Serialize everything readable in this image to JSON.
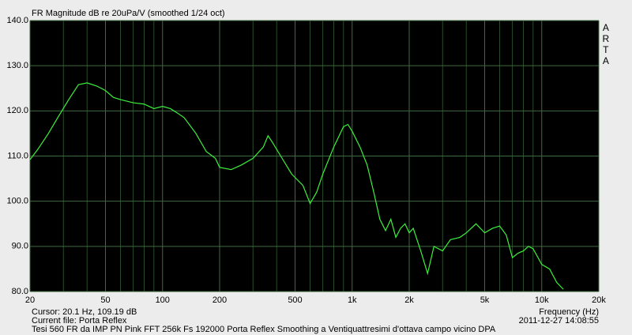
{
  "chart_data": {
    "type": "line",
    "title": "FR Magnitude dB re 20uPa/V (smoothed 1/24 oct)",
    "brand": "ARTA",
    "x_label": "Frequency (Hz)",
    "cursor": "Cursor: 20.1 Hz, 109.19 dB",
    "current_file": "Current file: Porta Reflex",
    "description": "Tesi 560 FR da IMP PN Pink FFT 256k Fs 192000 Porta Reflex Smoothing a Ventiquattresimi d'ottava campo vicino     DPA",
    "timestamp": "2011-12-27  14:08:55",
    "x_scale": "log",
    "xlim": [
      20,
      20000
    ],
    "ylim": [
      80,
      140
    ],
    "xticks": [
      20,
      50,
      100,
      200,
      500,
      {
        "value": 1000,
        "label": "1k"
      },
      {
        "value": 2000,
        "label": "2k"
      },
      {
        "value": 5000,
        "label": "5k"
      },
      {
        "value": 10000,
        "label": "10k"
      },
      {
        "value": 20000,
        "label": "20k"
      }
    ],
    "xminor": [
      30,
      40,
      60,
      70,
      80,
      90,
      300,
      400,
      600,
      700,
      800,
      900,
      3000,
      4000,
      6000,
      7000,
      8000,
      9000
    ],
    "yticks": [
      {
        "value": 80,
        "label": "80.0"
      },
      {
        "value": 90,
        "label": "90.0"
      },
      {
        "value": 100,
        "label": "100.0"
      },
      {
        "value": 110,
        "label": "110.0"
      },
      {
        "value": 120,
        "label": "120.0"
      },
      {
        "value": 130,
        "label": "130.0"
      },
      {
        "value": 140,
        "label": "140.0"
      }
    ],
    "grid": true,
    "color": "#3cf03c",
    "x": [
      20,
      22,
      25,
      28,
      32,
      36,
      40,
      45,
      50,
      55,
      60,
      70,
      80,
      90,
      100,
      110,
      120,
      130,
      150,
      170,
      190,
      200,
      230,
      260,
      300,
      340,
      360,
      380,
      420,
      480,
      550,
      600,
      650,
      700,
      800,
      900,
      950,
      1000,
      1100,
      1200,
      1300,
      1400,
      1500,
      1600,
      1700,
      1800,
      1900,
      2000,
      2100,
      2300,
      2500,
      2700,
      3000,
      3300,
      3700,
      4000,
      4500,
      5000,
      5500,
      6000,
      6500,
      7000,
      7500,
      8000,
      8500,
      9000,
      10000,
      11000,
      12000,
      13000
    ],
    "values": [
      109.2,
      111.5,
      115,
      118.5,
      122.5,
      125.8,
      126.2,
      125.5,
      124.5,
      123,
      122.5,
      121.8,
      121.5,
      120.5,
      121,
      120.5,
      119.5,
      118.5,
      115,
      111,
      109.5,
      107.5,
      107,
      108,
      109.5,
      112,
      114.5,
      113,
      110,
      106,
      103.5,
      99.5,
      102,
      106,
      112,
      116.5,
      117,
      115.5,
      112,
      108,
      102,
      96,
      93.5,
      96,
      92,
      94,
      95,
      93,
      94,
      89,
      84,
      90,
      89,
      91.5,
      92,
      93,
      95,
      93,
      94,
      94.5,
      92.5,
      87.5,
      88.5,
      89,
      90,
      89.5,
      86,
      85,
      82,
      80.5
    ]
  }
}
